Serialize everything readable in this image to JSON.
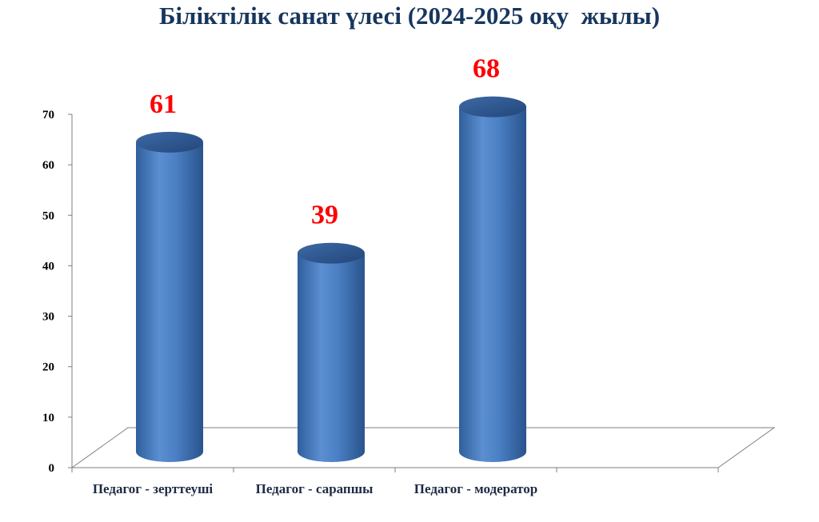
{
  "chart_data": {
    "type": "bar",
    "title": "Біліктілік санат үлесі (2024-2025 оқу  жылы)",
    "categories": [
      "Педагог - зерттеуші",
      "Педагог - сарапшы",
      "Педагог - модератор"
    ],
    "values": [
      61,
      39,
      68
    ],
    "data_labels": [
      "61",
      "39",
      "68"
    ],
    "ylim": [
      0,
      70
    ],
    "yticks": [
      0,
      10,
      20,
      30,
      40,
      50,
      60,
      70
    ],
    "xlabel": "",
    "ylabel": "",
    "grid": false,
    "legend": "none",
    "style": "3d-cylinder",
    "colors": {
      "bar": "#4f81bd",
      "bar_dark": "#2c5591",
      "label": "#ff0000",
      "title": "#17365d"
    }
  }
}
